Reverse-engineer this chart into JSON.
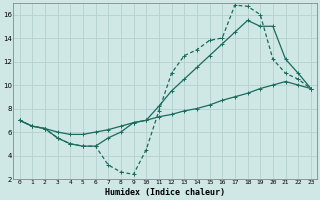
{
  "xlabel": "Humidex (Indice chaleur)",
  "bg_color": "#cfe8e6",
  "grid_color": "#b8d4d2",
  "line_color": "#1a6b5a",
  "xlim": [
    -0.5,
    23.5
  ],
  "ylim": [
    2,
    17
  ],
  "xticks": [
    0,
    1,
    2,
    3,
    4,
    5,
    6,
    7,
    8,
    9,
    10,
    11,
    12,
    13,
    14,
    15,
    16,
    17,
    18,
    19,
    20,
    21,
    22,
    23
  ],
  "yticks": [
    2,
    4,
    6,
    8,
    10,
    12,
    14,
    16
  ],
  "line1_x": [
    0,
    1,
    2,
    3,
    4,
    5,
    6,
    7,
    8,
    9,
    10,
    11,
    12,
    13,
    14,
    15,
    16,
    17,
    18,
    19,
    20,
    21,
    22,
    23
  ],
  "line1_y": [
    7.0,
    6.5,
    6.3,
    5.5,
    5.0,
    4.8,
    4.8,
    3.2,
    2.6,
    2.4,
    4.5,
    7.8,
    11.0,
    12.5,
    13.0,
    13.8,
    14.0,
    16.8,
    16.7,
    16.0,
    12.2,
    11.0,
    10.5,
    9.7
  ],
  "line2_x": [
    0,
    1,
    2,
    3,
    4,
    5,
    6,
    7,
    8,
    9,
    10,
    11,
    12,
    13,
    14,
    15,
    16,
    17,
    18,
    19,
    20,
    21,
    22,
    23
  ],
  "line2_y": [
    7.0,
    6.5,
    6.3,
    5.5,
    5.0,
    4.8,
    4.8,
    5.5,
    6.0,
    6.8,
    7.0,
    8.2,
    9.5,
    10.5,
    11.5,
    12.5,
    13.5,
    14.5,
    15.5,
    15.0,
    15.0,
    12.2,
    11.0,
    9.7
  ],
  "line3_x": [
    0,
    1,
    2,
    3,
    4,
    5,
    6,
    7,
    8,
    9,
    10,
    11,
    12,
    13,
    14,
    15,
    16,
    17,
    18,
    19,
    20,
    21,
    22,
    23
  ],
  "line3_y": [
    7.0,
    6.5,
    6.3,
    6.0,
    5.8,
    5.8,
    6.0,
    6.2,
    6.5,
    6.8,
    7.0,
    7.3,
    7.5,
    7.8,
    8.0,
    8.3,
    8.7,
    9.0,
    9.3,
    9.7,
    10.0,
    10.3,
    10.0,
    9.7
  ]
}
